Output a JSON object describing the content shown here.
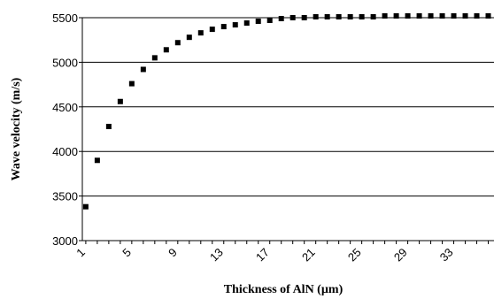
{
  "chart_data": {
    "type": "scatter",
    "title": "",
    "xlabel": "Thickness of AlN (µm)",
    "ylabel": "Wave velocity (m/s)",
    "ylim": [
      3000,
      5500
    ],
    "y_ticks": [
      3000,
      3500,
      4000,
      4500,
      5000,
      5500
    ],
    "x_tick_labels": [
      "1",
      "5",
      "9",
      "13",
      "17",
      "21",
      "25",
      "29",
      "33"
    ],
    "grid": "horizontal major gridlines",
    "legend": "none",
    "marker": "square",
    "marker_color": "#000000",
    "series": [
      {
        "x": [
          1,
          2,
          3,
          4,
          5,
          6,
          7,
          8,
          9,
          10,
          11,
          12,
          13,
          14,
          15,
          16,
          17,
          18,
          19,
          20,
          21,
          22,
          23,
          24,
          25,
          26,
          27,
          28,
          29,
          30,
          31,
          32,
          33,
          34,
          35,
          36
        ],
        "y": [
          3380,
          3900,
          4280,
          4560,
          4760,
          4920,
          5050,
          5140,
          5220,
          5280,
          5330,
          5370,
          5400,
          5420,
          5440,
          5460,
          5470,
          5490,
          5500,
          5500,
          5510,
          5510,
          5510,
          5510,
          5510,
          5510,
          5520,
          5520,
          5520,
          5520,
          5520,
          5520,
          5520,
          5520,
          5520,
          5520
        ]
      }
    ]
  }
}
